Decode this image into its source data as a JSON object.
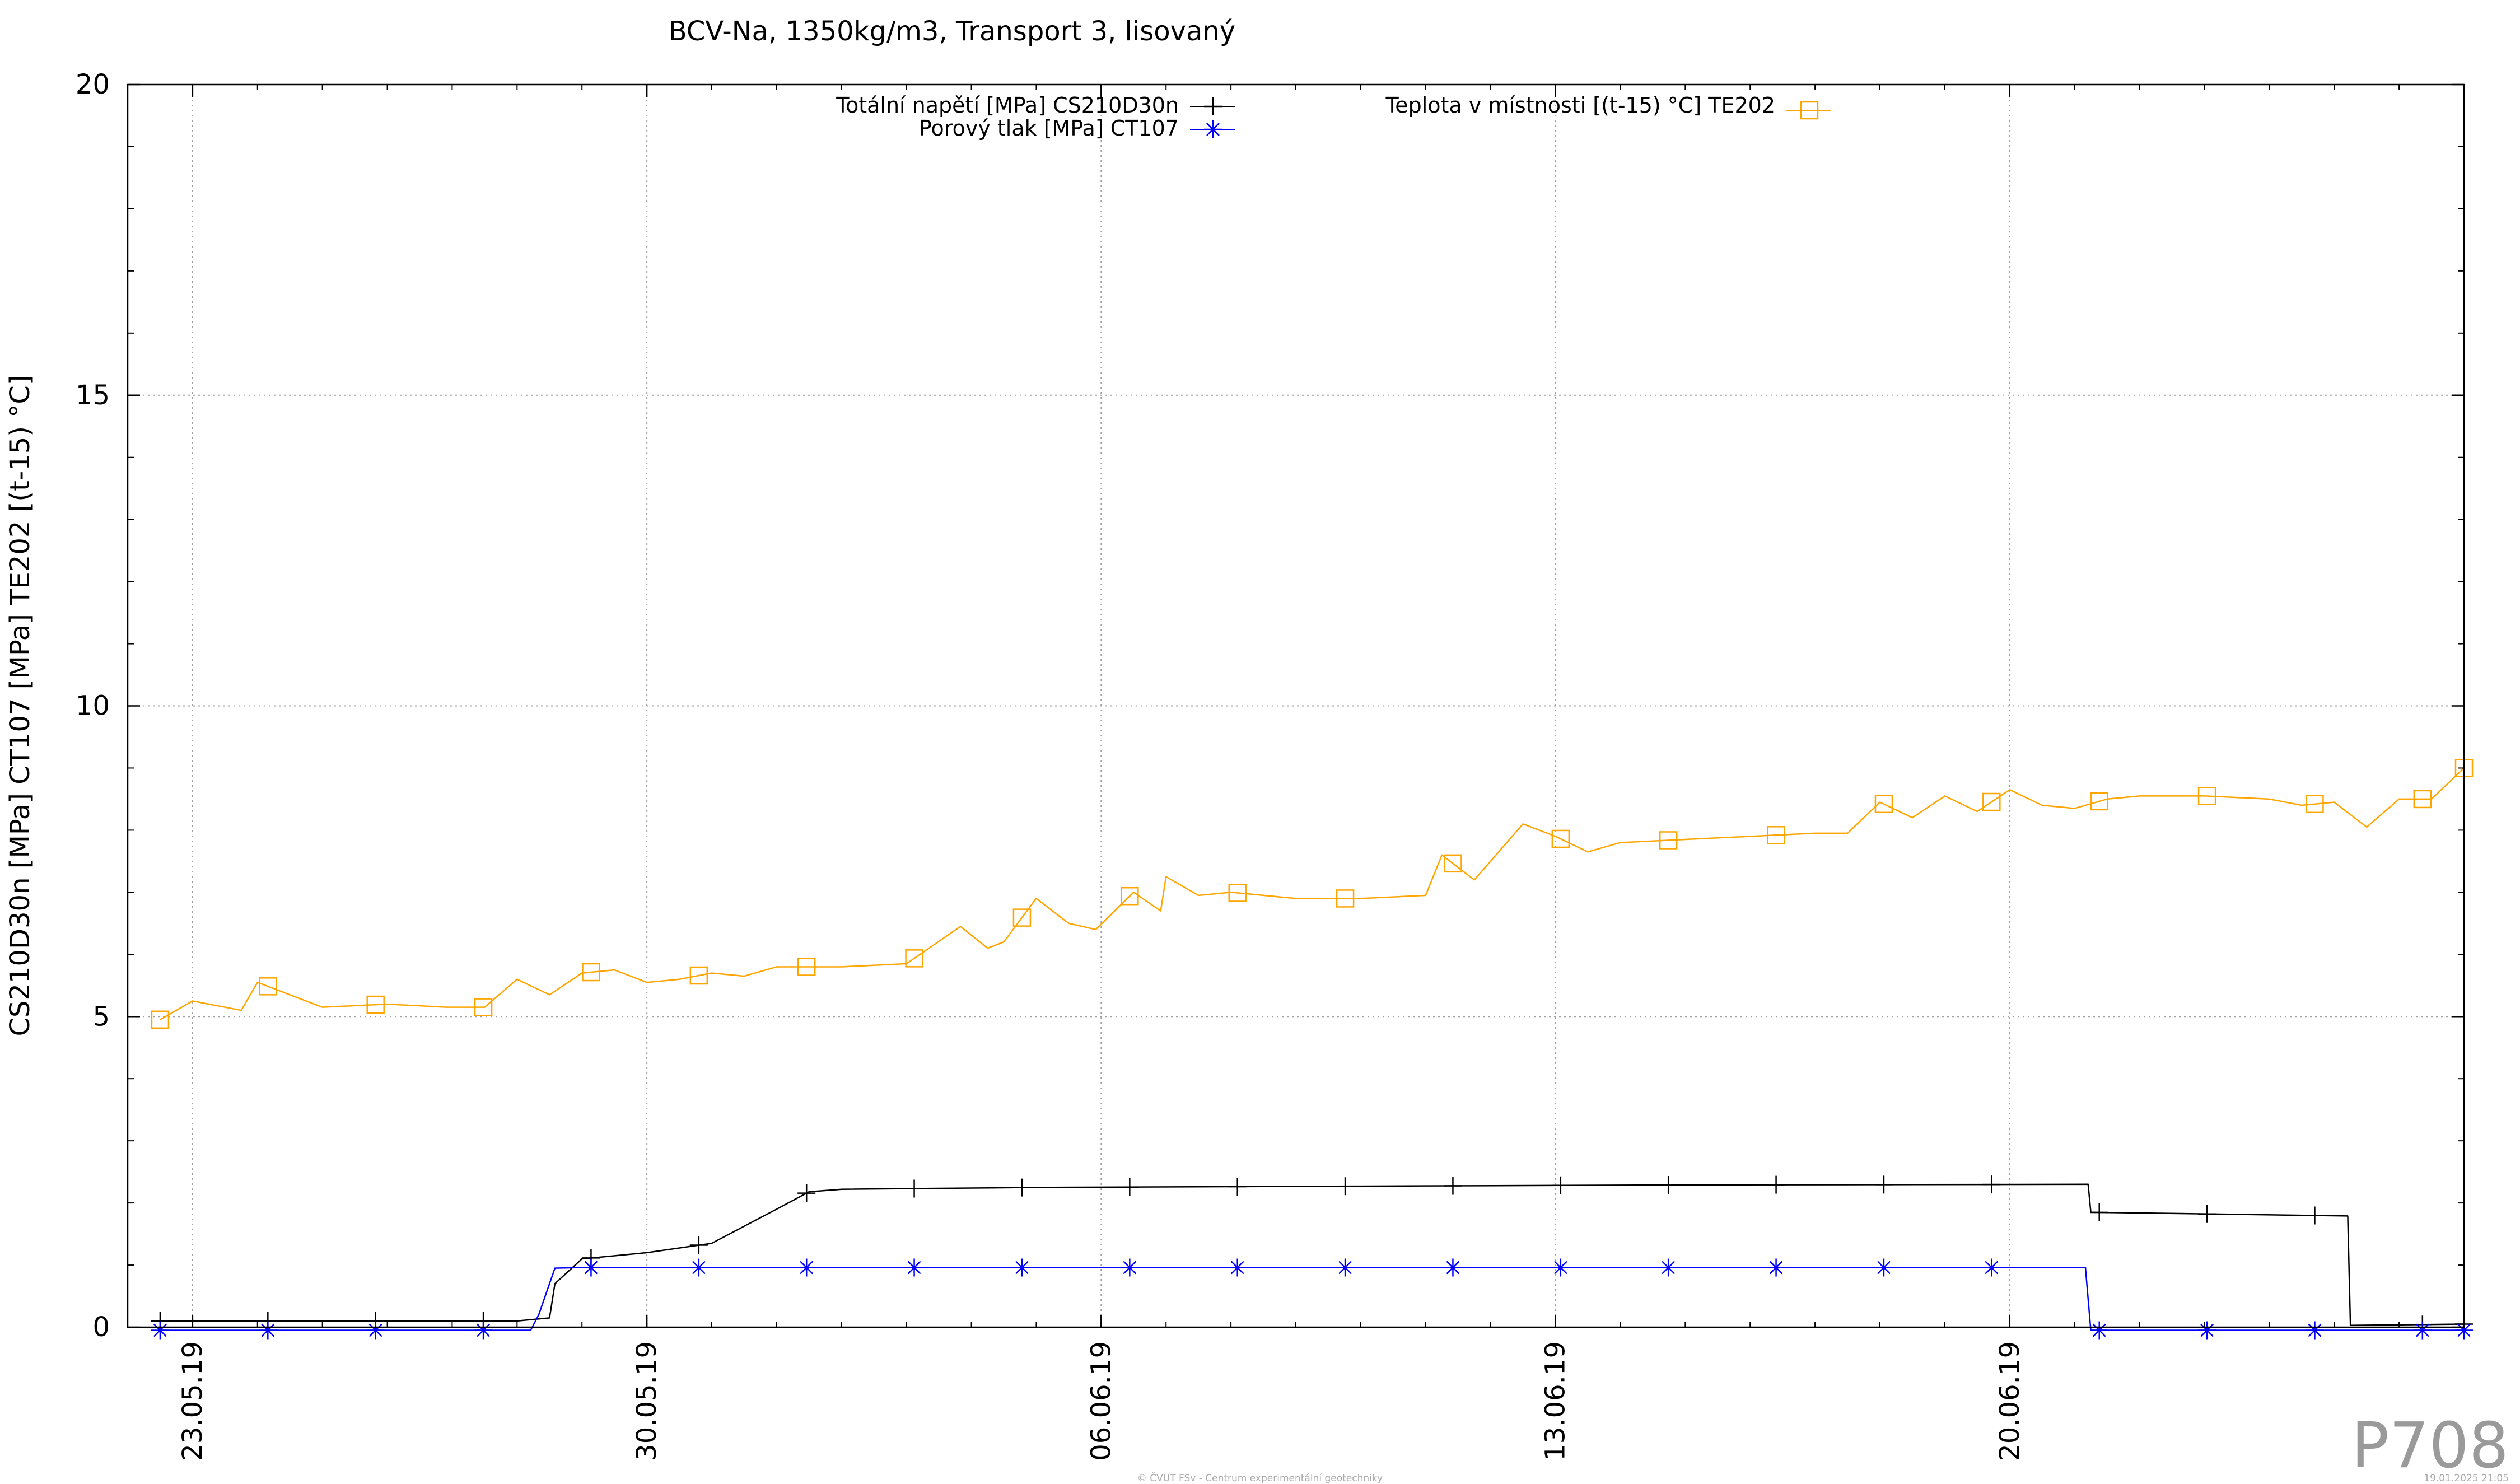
{
  "colors": {
    "cs210": "#000000",
    "ct107": "#0000ff",
    "te202": "#ffa500",
    "grid": "#a0a0a0",
    "axis": "#000000"
  },
  "chart_data": {
    "type": "line",
    "title": "BCV-Na, 1350kg/m3, Transport 3, lisovaný",
    "ylabel": "CS210D30n [MPa] CT107 [MPa] TE202 [(t-15) °C]",
    "ylim": [
      0,
      20
    ],
    "yticks": [
      0,
      5,
      10,
      15,
      20
    ],
    "xlim": [
      "2019-05-22",
      "2019-06-27"
    ],
    "xticks": [
      "23.05.19",
      "30.05.19",
      "06.06.19",
      "13.06.19",
      "20.06.19"
    ],
    "grid": true,
    "legend": "top",
    "series": [
      {
        "name": "Totální napětí [MPa] CS210D30n",
        "marker": "plus",
        "x": [
          "2019-05-22 12:00",
          "2019-05-27 00:00",
          "2019-05-28 00:00",
          "2019-05-28 12:00",
          "2019-05-28 14:00",
          "2019-05-29 00:00",
          "2019-05-30 00:00",
          "2019-05-31 00:00",
          "2019-06-01 00:00",
          "2019-06-01 12:00",
          "2019-06-02 00:00",
          "2019-06-05 00:00",
          "2019-06-10 00:00",
          "2019-06-15 00:00",
          "2019-06-21 05:00",
          "2019-06-21 06:00",
          "2019-06-25 05:00",
          "2019-06-25 06:00",
          "2019-06-27 00:00"
        ],
        "values": [
          0.1,
          0.1,
          0.1,
          0.15,
          0.7,
          1.1,
          1.2,
          1.35,
          1.9,
          2.18,
          2.22,
          2.25,
          2.27,
          2.29,
          2.3,
          1.85,
          1.79,
          0.03,
          0.05
        ]
      },
      {
        "name": "Porový tlak [MPa] CT107",
        "marker": "star",
        "x": [
          "2019-05-22 12:00",
          "2019-05-28 05:00",
          "2019-05-28 08:00",
          "2019-05-28 14:00",
          "2019-05-29 00:00",
          "2019-06-10 00:00",
          "2019-06-21 04:00",
          "2019-06-21 06:00",
          "2019-06-27 00:00"
        ],
        "values": [
          -0.05,
          -0.05,
          0.2,
          0.95,
          0.96,
          0.96,
          0.96,
          -0.05,
          -0.05
        ]
      },
      {
        "name": "Teplota v místnosti [(t-15) °C] TE202",
        "marker": "square",
        "x": [
          "2019-05-22 12:00",
          "2019-05-23 00:00",
          "2019-05-23 18:00",
          "2019-05-24 00:00",
          "2019-05-25 00:00",
          "2019-05-26 00:00",
          "2019-05-26 22:00",
          "2019-05-27 12:00",
          "2019-05-28 00:00",
          "2019-05-28 12:00",
          "2019-05-29 00:00",
          "2019-05-29 12:00",
          "2019-05-30 00:00",
          "2019-05-30 12:00",
          "2019-05-31 00:00",
          "2019-05-31 12:00",
          "2019-06-01 00:00",
          "2019-06-02 00:00",
          "2019-06-03 00:00",
          "2019-06-03 20:00",
          "2019-06-04 06:00",
          "2019-06-04 12:00",
          "2019-06-05 00:00",
          "2019-06-05 12:00",
          "2019-06-05 22:00",
          "2019-06-06 12:00",
          "2019-06-06 22:00",
          "2019-06-07 00:00",
          "2019-06-07 12:00",
          "2019-06-08 00:00",
          "2019-06-09 00:00",
          "2019-06-10 00:00",
          "2019-06-11 00:00",
          "2019-06-11 06:00",
          "2019-06-11 18:00",
          "2019-06-12 00:00",
          "2019-06-12 12:00",
          "2019-06-13 00:00",
          "2019-06-13 12:00",
          "2019-06-14 00:00",
          "2019-06-15 00:00",
          "2019-06-16 00:00",
          "2019-06-17 00:00",
          "2019-06-17 12:00",
          "2019-06-18 00:00",
          "2019-06-18 12:00",
          "2019-06-19 00:00",
          "2019-06-19 12:00",
          "2019-06-20 00:00",
          "2019-06-20 12:00",
          "2019-06-21 00:00",
          "2019-06-21 12:00",
          "2019-06-22 00:00",
          "2019-06-23 00:00",
          "2019-06-24 00:00",
          "2019-06-24 12:00",
          "2019-06-25 00:00",
          "2019-06-25 12:00",
          "2019-06-26 00:00",
          "2019-06-26 12:00",
          "2019-06-27 00:00"
        ],
        "values": [
          4.95,
          5.25,
          5.1,
          5.55,
          5.15,
          5.2,
          5.15,
          5.15,
          5.6,
          5.35,
          5.7,
          5.75,
          5.55,
          5.6,
          5.7,
          5.65,
          5.8,
          5.8,
          5.85,
          6.45,
          6.1,
          6.2,
          6.9,
          6.5,
          6.4,
          7.0,
          6.7,
          7.25,
          6.95,
          7.0,
          6.9,
          6.9,
          6.95,
          7.6,
          7.2,
          7.5,
          8.1,
          7.9,
          7.65,
          7.8,
          7.85,
          7.9,
          7.95,
          7.95,
          8.45,
          8.2,
          8.55,
          8.3,
          8.65,
          8.4,
          8.35,
          8.5,
          8.55,
          8.55,
          8.5,
          8.4,
          8.45,
          8.05,
          8.5,
          8.5,
          9.0
        ]
      }
    ]
  },
  "watermark": "P708",
  "footer": {
    "left": "© ČVUT FSv - Centrum experimentální geotechniky",
    "right": "19.01.2025 21:05"
  }
}
